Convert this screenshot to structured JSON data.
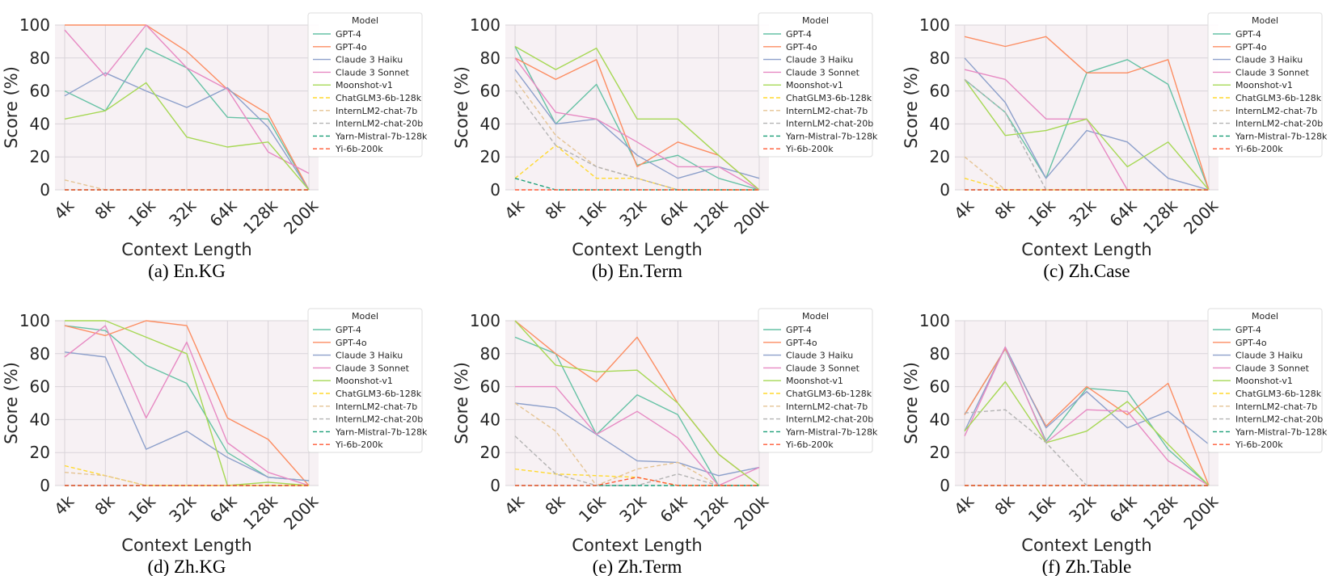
{
  "legend": {
    "title": "Model",
    "models": [
      {
        "name": "GPT-4",
        "color": "#66c2a5",
        "dash": false
      },
      {
        "name": "GPT-4o",
        "color": "#fc8d62",
        "dash": false
      },
      {
        "name": "Claude 3 Haiku",
        "color": "#8da0cb",
        "dash": false
      },
      {
        "name": "Claude 3 Sonnet",
        "color": "#e78ac3",
        "dash": false
      },
      {
        "name": "Moonshot-v1",
        "color": "#a6d854",
        "dash": false
      },
      {
        "name": "ChatGLM3-6b-128k",
        "color": "#ffd92f",
        "dash": true
      },
      {
        "name": "InternLM2-chat-7b",
        "color": "#e5c494",
        "dash": true
      },
      {
        "name": "InternLM2-chat-20b",
        "color": "#b3b3b3",
        "dash": true
      },
      {
        "name": "Yarn-Mistral-7b-128k",
        "color": "#1b9e77",
        "dash": true
      },
      {
        "name": "Yi-6b-200k",
        "color": "#ff5a36",
        "dash": true
      }
    ]
  },
  "chart_data": [
    {
      "type": "line",
      "caption": "(a) En.KG",
      "xlabel": "Context Length",
      "ylabel": "Score (%)",
      "ylim": [
        0,
        100
      ],
      "yticks": [
        0,
        20,
        40,
        60,
        80,
        100
      ],
      "categories": [
        "4k",
        "8k",
        "16k",
        "32k",
        "64k",
        "128k",
        "200k"
      ],
      "grid": true,
      "legend_position": "top-right",
      "series": [
        {
          "name": "GPT-4",
          "values": [
            60,
            48,
            86,
            74,
            44,
            43,
            0
          ]
        },
        {
          "name": "GPT-4o",
          "values": [
            100,
            100,
            100,
            84,
            61,
            46,
            0
          ]
        },
        {
          "name": "Claude 3 Haiku",
          "values": [
            57,
            71,
            60,
            50,
            62,
            38,
            0
          ]
        },
        {
          "name": "Claude 3 Sonnet",
          "values": [
            97,
            69,
            100,
            74,
            61,
            23,
            10
          ]
        },
        {
          "name": "Moonshot-v1",
          "values": [
            43,
            48,
            65,
            32,
            26,
            29,
            0
          ]
        },
        {
          "name": "ChatGLM3-6b-128k",
          "values": [
            0,
            0,
            0,
            0,
            0,
            0,
            0
          ]
        },
        {
          "name": "InternLM2-chat-7b",
          "values": [
            6,
            0,
            0,
            0,
            0,
            0,
            0
          ]
        },
        {
          "name": "InternLM2-chat-20b",
          "values": [
            0,
            0,
            0,
            0,
            0,
            0,
            0
          ]
        },
        {
          "name": "Yarn-Mistral-7b-128k",
          "values": [
            0,
            0,
            0,
            0,
            0,
            0,
            0
          ]
        },
        {
          "name": "Yi-6b-200k",
          "values": [
            0,
            0,
            0,
            0,
            0,
            0,
            0
          ]
        }
      ]
    },
    {
      "type": "line",
      "caption": "(b) En.Term",
      "xlabel": "Context Length",
      "ylabel": "Score (%)",
      "ylim": [
        0,
        100
      ],
      "yticks": [
        0,
        20,
        40,
        60,
        80,
        100
      ],
      "categories": [
        "4k",
        "8k",
        "16k",
        "32k",
        "64k",
        "128k",
        "200k"
      ],
      "grid": true,
      "legend_position": "top-right",
      "series": [
        {
          "name": "GPT-4",
          "values": [
            87,
            40,
            64,
            15,
            21,
            7,
            0
          ]
        },
        {
          "name": "GPT-4o",
          "values": [
            80,
            67,
            79,
            14,
            29,
            21,
            0
          ]
        },
        {
          "name": "Claude 3 Haiku",
          "values": [
            73,
            40,
            43,
            21,
            7,
            14,
            7
          ]
        },
        {
          "name": "Claude 3 Sonnet",
          "values": [
            80,
            47,
            43,
            29,
            14,
            14,
            0
          ]
        },
        {
          "name": "Moonshot-v1",
          "values": [
            87,
            73,
            86,
            43,
            43,
            21,
            0
          ]
        },
        {
          "name": "ChatGLM3-6b-128k",
          "values": [
            7,
            27,
            7,
            7,
            0,
            0,
            0
          ]
        },
        {
          "name": "InternLM2-chat-7b",
          "values": [
            67,
            33,
            14,
            7,
            0,
            0,
            0
          ]
        },
        {
          "name": "InternLM2-chat-20b",
          "values": [
            60,
            27,
            14,
            7,
            0,
            0,
            0
          ]
        },
        {
          "name": "Yarn-Mistral-7b-128k",
          "values": [
            7,
            0,
            0,
            0,
            0,
            0,
            0
          ]
        },
        {
          "name": "Yi-6b-200k",
          "values": [
            0,
            0,
            0,
            0,
            0,
            0,
            0
          ]
        }
      ]
    },
    {
      "type": "line",
      "caption": "(c) Zh.Case",
      "xlabel": "Context Length",
      "ylabel": "Score (%)",
      "ylim": [
        0,
        100
      ],
      "yticks": [
        0,
        20,
        40,
        60,
        80,
        100
      ],
      "categories": [
        "4k",
        "8k",
        "16k",
        "32k",
        "64k",
        "128k",
        "200k"
      ],
      "grid": true,
      "legend_position": "top-right",
      "series": [
        {
          "name": "GPT-4",
          "values": [
            67,
            47,
            7,
            71,
            79,
            64,
            0
          ]
        },
        {
          "name": "GPT-4o",
          "values": [
            93,
            87,
            93,
            71,
            71,
            79,
            0
          ]
        },
        {
          "name": "Claude 3 Haiku",
          "values": [
            80,
            53,
            7,
            36,
            29,
            7,
            0
          ]
        },
        {
          "name": "Claude 3 Sonnet",
          "values": [
            73,
            67,
            43,
            43,
            0,
            0,
            0
          ]
        },
        {
          "name": "Moonshot-v1",
          "values": [
            67,
            33,
            36,
            43,
            14,
            29,
            0
          ]
        },
        {
          "name": "ChatGLM3-6b-128k",
          "values": [
            7,
            0,
            0,
            0,
            0,
            0,
            0
          ]
        },
        {
          "name": "InternLM2-chat-7b",
          "values": [
            20,
            0,
            0,
            0,
            0,
            0,
            0
          ]
        },
        {
          "name": "InternLM2-chat-20b",
          "values": [
            67,
            47,
            0,
            0,
            0,
            0,
            0
          ]
        },
        {
          "name": "Yarn-Mistral-7b-128k",
          "values": [
            0,
            0,
            0,
            0,
            0,
            0,
            0
          ]
        },
        {
          "name": "Yi-6b-200k",
          "values": [
            0,
            0,
            0,
            0,
            0,
            0,
            0
          ]
        }
      ]
    },
    {
      "type": "line",
      "caption": "(d) Zh.KG",
      "xlabel": "Context Length",
      "ylabel": "Score (%)",
      "ylim": [
        0,
        100
      ],
      "yticks": [
        0,
        20,
        40,
        60,
        80,
        100
      ],
      "categories": [
        "4k",
        "8k",
        "16k",
        "32k",
        "64k",
        "128k",
        "200k"
      ],
      "grid": true,
      "legend_position": "top-right",
      "series": [
        {
          "name": "GPT-4",
          "values": [
            97,
            94,
            73,
            62,
            20,
            5,
            3
          ]
        },
        {
          "name": "GPT-4o",
          "values": [
            97,
            91,
            100,
            97,
            41,
            28,
            0
          ]
        },
        {
          "name": "Claude 3 Haiku",
          "values": [
            81,
            78,
            22,
            33,
            17,
            5,
            3
          ]
        },
        {
          "name": "Claude 3 Sonnet",
          "values": [
            78,
            97,
            41,
            87,
            26,
            8,
            0
          ]
        },
        {
          "name": "Moonshot-v1",
          "values": [
            100,
            100,
            90,
            80,
            0,
            2,
            0
          ]
        },
        {
          "name": "ChatGLM3-6b-128k",
          "values": [
            12,
            6,
            0,
            0,
            0,
            0,
            0
          ]
        },
        {
          "name": "InternLM2-chat-7b",
          "values": [
            8,
            6,
            0,
            0,
            0,
            0,
            0
          ]
        },
        {
          "name": "InternLM2-chat-20b",
          "values": [
            0,
            0,
            0,
            0,
            0,
            0,
            0
          ]
        },
        {
          "name": "Yarn-Mistral-7b-128k",
          "values": [
            0,
            0,
            0,
            0,
            0,
            0,
            0
          ]
        },
        {
          "name": "Yi-6b-200k",
          "values": [
            0,
            0,
            0,
            0,
            0,
            0,
            0
          ]
        }
      ]
    },
    {
      "type": "line",
      "caption": "(e) Zh.Term",
      "xlabel": "Context Length",
      "ylabel": "Score (%)",
      "ylim": [
        0,
        100
      ],
      "yticks": [
        0,
        20,
        40,
        60,
        80,
        100
      ],
      "categories": [
        "4k",
        "8k",
        "16k",
        "32k",
        "64k",
        "128k",
        "200k"
      ],
      "grid": true,
      "legend_position": "top-right",
      "series": [
        {
          "name": "GPT-4",
          "values": [
            90,
            80,
            31,
            55,
            43,
            0,
            0
          ]
        },
        {
          "name": "GPT-4o",
          "values": [
            100,
            80,
            63,
            90,
            50,
            19,
            0
          ]
        },
        {
          "name": "Claude 3 Haiku",
          "values": [
            50,
            47,
            31,
            15,
            14,
            6,
            11
          ]
        },
        {
          "name": "Claude 3 Sonnet",
          "values": [
            60,
            60,
            31,
            45,
            29,
            0,
            11
          ]
        },
        {
          "name": "Moonshot-v1",
          "values": [
            100,
            73,
            69,
            70,
            50,
            19,
            0
          ]
        },
        {
          "name": "ChatGLM3-6b-128k",
          "values": [
            10,
            7,
            6,
            5,
            0,
            0,
            0
          ]
        },
        {
          "name": "InternLM2-chat-7b",
          "values": [
            50,
            33,
            0,
            10,
            14,
            0,
            0
          ]
        },
        {
          "name": "InternLM2-chat-20b",
          "values": [
            30,
            7,
            0,
            0,
            7,
            0,
            0
          ]
        },
        {
          "name": "Yarn-Mistral-7b-128k",
          "values": [
            0,
            0,
            0,
            0,
            0,
            0,
            0
          ]
        },
        {
          "name": "Yi-6b-200k",
          "values": [
            0,
            0,
            0,
            5,
            0,
            0,
            0
          ]
        }
      ]
    },
    {
      "type": "line",
      "caption": "(f) Zh.Table",
      "xlabel": "Context Length",
      "ylabel": "Score (%)",
      "ylim": [
        0,
        100
      ],
      "yticks": [
        0,
        20,
        40,
        60,
        80,
        100
      ],
      "categories": [
        "4k",
        "8k",
        "16k",
        "32k",
        "64k",
        "128k",
        "200k"
      ],
      "grid": true,
      "legend_position": "top-right",
      "series": [
        {
          "name": "GPT-4",
          "values": [
            43,
            83,
            27,
            59,
            57,
            22,
            0
          ]
        },
        {
          "name": "GPT-4o",
          "values": [
            43,
            83,
            36,
            60,
            43,
            62,
            0
          ]
        },
        {
          "name": "Claude 3 Haiku",
          "values": [
            33,
            84,
            35,
            57,
            35,
            45,
            25
          ]
        },
        {
          "name": "Claude 3 Sonnet",
          "values": [
            30,
            84,
            26,
            46,
            45,
            15,
            0
          ]
        },
        {
          "name": "Moonshot-v1",
          "values": [
            33,
            63,
            26,
            33,
            51,
            25,
            0
          ]
        },
        {
          "name": "ChatGLM3-6b-128k",
          "values": [
            0,
            0,
            0,
            0,
            0,
            0,
            0
          ]
        },
        {
          "name": "InternLM2-chat-7b",
          "values": [
            0,
            0,
            0,
            0,
            0,
            0,
            0
          ]
        },
        {
          "name": "InternLM2-chat-20b",
          "values": [
            44,
            46,
            26,
            0,
            0,
            0,
            0
          ]
        },
        {
          "name": "Yarn-Mistral-7b-128k",
          "values": [
            0,
            0,
            0,
            0,
            0,
            0,
            0
          ]
        },
        {
          "name": "Yi-6b-200k",
          "values": [
            0,
            0,
            0,
            0,
            0,
            0,
            0
          ]
        }
      ]
    }
  ]
}
